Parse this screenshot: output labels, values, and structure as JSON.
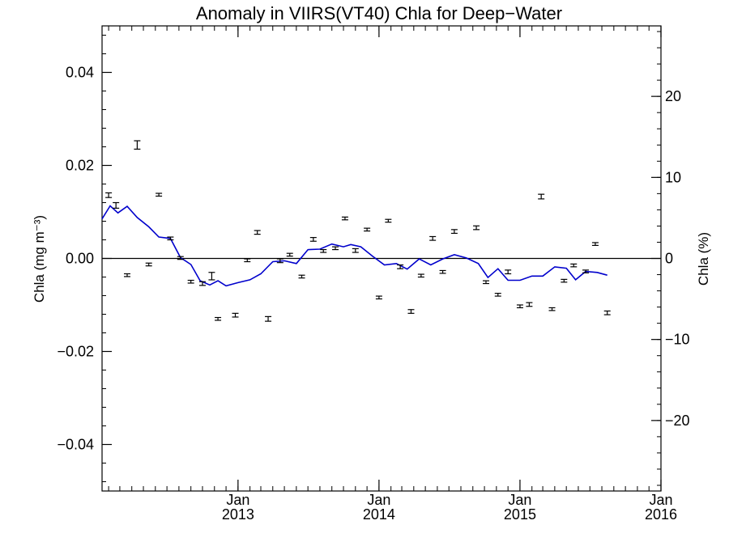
{
  "chart_data": {
    "type": "scatter",
    "title": "Anomaly in VIIRS(VT40) Chla for Deep−Water",
    "ylabel_left": "Chla (mg m⁻³)",
    "ylabel_right": "Chla (%)",
    "xlabel": "",
    "ylim": [
      -0.05,
      0.05
    ],
    "ylim_right_percent": [
      -28.7,
      28.7
    ],
    "xlim": [
      "2012-01-15",
      "2016-01-01"
    ],
    "grid": false,
    "legend": "none",
    "x_ticks": [
      {
        "date": "2013-01-01",
        "month": "Jan",
        "year": "2013"
      },
      {
        "date": "2014-01-01",
        "month": "Jan",
        "year": "2014"
      },
      {
        "date": "2015-01-01",
        "month": "Jan",
        "year": "2015"
      },
      {
        "date": "2016-01-01",
        "month": "Jan",
        "year": "2016"
      }
    ],
    "y_ticks_left": [
      {
        "value": 0.04,
        "label": "0.04"
      },
      {
        "value": 0.02,
        "label": "0.02"
      },
      {
        "value": 0.0,
        "label": "0.00"
      },
      {
        "value": -0.02,
        "label": "−0.02"
      },
      {
        "value": -0.04,
        "label": "−0.04"
      }
    ],
    "y_ticks_right": [
      {
        "value": 20,
        "label": "20"
      },
      {
        "value": 10,
        "label": "10"
      },
      {
        "value": 0,
        "label": "0"
      },
      {
        "value": -10,
        "label": "−10"
      },
      {
        "value": -20,
        "label": "−20"
      }
    ],
    "zero_line": 0.0,
    "series": [
      {
        "kind": "errorbar",
        "color": "#000000",
        "points": [
          {
            "x": "2012-02-01",
            "y": 0.0136,
            "err": 0.0005
          },
          {
            "x": "2012-02-20",
            "y": 0.0114,
            "err": 0.0006
          },
          {
            "x": "2012-03-20",
            "y": -0.0036,
            "err": 0.0003
          },
          {
            "x": "2012-04-15",
            "y": 0.0244,
            "err": 0.0009
          },
          {
            "x": "2012-05-15",
            "y": -0.0013,
            "err": 0.0003
          },
          {
            "x": "2012-06-10",
            "y": 0.0137,
            "err": 0.0003
          },
          {
            "x": "2012-07-10",
            "y": 0.0043,
            "err": 0.0003
          },
          {
            "x": "2012-08-05",
            "y": 0.0001,
            "err": 0.0003
          },
          {
            "x": "2012-09-01",
            "y": -0.005,
            "err": 0.0003
          },
          {
            "x": "2012-10-01",
            "y": -0.0054,
            "err": 0.0004
          },
          {
            "x": "2012-10-25",
            "y": -0.0038,
            "err": 0.0008
          },
          {
            "x": "2012-11-10",
            "y": -0.013,
            "err": 0.0003
          },
          {
            "x": "2012-12-25",
            "y": -0.0122,
            "err": 0.0004
          },
          {
            "x": "2013-01-25",
            "y": -0.0004,
            "err": 0.0003
          },
          {
            "x": "2013-02-20",
            "y": 0.0056,
            "err": 0.0004
          },
          {
            "x": "2013-03-20",
            "y": -0.013,
            "err": 0.0005
          },
          {
            "x": "2013-04-20",
            "y": -0.0005,
            "err": 0.0004
          },
          {
            "x": "2013-05-15",
            "y": 0.0008,
            "err": 0.0003
          },
          {
            "x": "2013-06-15",
            "y": -0.0039,
            "err": 0.0003
          },
          {
            "x": "2013-07-15",
            "y": 0.0041,
            "err": 0.0004
          },
          {
            "x": "2013-08-10",
            "y": 0.0016,
            "err": 0.0003
          },
          {
            "x": "2013-09-10",
            "y": 0.0022,
            "err": 0.0003
          },
          {
            "x": "2013-10-05",
            "y": 0.0086,
            "err": 0.0003
          },
          {
            "x": "2013-11-01",
            "y": 0.0017,
            "err": 0.0004
          },
          {
            "x": "2013-12-01",
            "y": 0.0062,
            "err": 0.0003
          },
          {
            "x": "2014-01-01",
            "y": -0.0084,
            "err": 0.0003
          },
          {
            "x": "2014-01-25",
            "y": 0.0081,
            "err": 0.0003
          },
          {
            "x": "2014-02-25",
            "y": -0.0018,
            "err": 0.0004
          },
          {
            "x": "2014-03-25",
            "y": -0.0114,
            "err": 0.0004
          },
          {
            "x": "2014-04-20",
            "y": -0.0037,
            "err": 0.0003
          },
          {
            "x": "2014-05-20",
            "y": 0.0043,
            "err": 0.0004
          },
          {
            "x": "2014-06-15",
            "y": -0.0029,
            "err": 0.0003
          },
          {
            "x": "2014-07-15",
            "y": 0.0058,
            "err": 0.0004
          },
          {
            "x": "2014-09-10",
            "y": 0.0066,
            "err": 0.0004
          },
          {
            "x": "2014-10-05",
            "y": -0.0051,
            "err": 0.0003
          },
          {
            "x": "2014-11-05",
            "y": -0.0078,
            "err": 0.0003
          },
          {
            "x": "2014-12-01",
            "y": -0.0029,
            "err": 0.0004
          },
          {
            "x": "2015-01-01",
            "y": -0.0103,
            "err": 0.0003
          },
          {
            "x": "2015-01-25",
            "y": -0.0099,
            "err": 0.0004
          },
          {
            "x": "2015-02-25",
            "y": 0.0133,
            "err": 0.0005
          },
          {
            "x": "2015-03-25",
            "y": -0.0109,
            "err": 0.0003
          },
          {
            "x": "2015-04-25",
            "y": -0.0048,
            "err": 0.0003
          },
          {
            "x": "2015-05-20",
            "y": -0.0015,
            "err": 0.0003
          },
          {
            "x": "2015-06-20",
            "y": -0.0028,
            "err": 0.0003
          },
          {
            "x": "2015-07-15",
            "y": 0.0031,
            "err": 0.0003
          },
          {
            "x": "2015-08-15",
            "y": -0.0117,
            "err": 0.0004
          }
        ]
      },
      {
        "kind": "line",
        "color": "#0000cc",
        "points": [
          {
            "x": "2012-01-15",
            "y": 0.0085
          },
          {
            "x": "2012-02-05",
            "y": 0.0113
          },
          {
            "x": "2012-02-25",
            "y": 0.0098
          },
          {
            "x": "2012-03-20",
            "y": 0.0112
          },
          {
            "x": "2012-04-15",
            "y": 0.0088
          },
          {
            "x": "2012-05-15",
            "y": 0.0068
          },
          {
            "x": "2012-06-10",
            "y": 0.0046
          },
          {
            "x": "2012-07-10",
            "y": 0.0043
          },
          {
            "x": "2012-08-05",
            "y": 0.0002
          },
          {
            "x": "2012-09-01",
            "y": -0.0013
          },
          {
            "x": "2012-09-25",
            "y": -0.0048
          },
          {
            "x": "2012-10-20",
            "y": -0.0057
          },
          {
            "x": "2012-11-10",
            "y": -0.0048
          },
          {
            "x": "2012-12-01",
            "y": -0.0059
          },
          {
            "x": "2013-01-01",
            "y": -0.0052
          },
          {
            "x": "2013-02-01",
            "y": -0.0046
          },
          {
            "x": "2013-03-01",
            "y": -0.0033
          },
          {
            "x": "2013-04-01",
            "y": -0.0007
          },
          {
            "x": "2013-05-01",
            "y": -0.0005
          },
          {
            "x": "2013-06-01",
            "y": -0.0011
          },
          {
            "x": "2013-07-01",
            "y": 0.0019
          },
          {
            "x": "2013-08-01",
            "y": 0.002
          },
          {
            "x": "2013-09-01",
            "y": 0.0031
          },
          {
            "x": "2013-10-01",
            "y": 0.0025
          },
          {
            "x": "2013-10-20",
            "y": 0.003
          },
          {
            "x": "2013-11-15",
            "y": 0.0025
          },
          {
            "x": "2013-12-15",
            "y": 0.0005
          },
          {
            "x": "2014-01-15",
            "y": -0.0014
          },
          {
            "x": "2014-02-15",
            "y": -0.0011
          },
          {
            "x": "2014-03-15",
            "y": -0.0023
          },
          {
            "x": "2014-04-15",
            "y": -0.0001
          },
          {
            "x": "2014-05-15",
            "y": -0.0014
          },
          {
            "x": "2014-06-15",
            "y": -0.0001
          },
          {
            "x": "2014-07-15",
            "y": 0.0008
          },
          {
            "x": "2014-08-15",
            "y": 0.0001
          },
          {
            "x": "2014-09-15",
            "y": -0.0011
          },
          {
            "x": "2014-10-10",
            "y": -0.0041
          },
          {
            "x": "2014-11-05",
            "y": -0.0022
          },
          {
            "x": "2014-12-01",
            "y": -0.0047
          },
          {
            "x": "2015-01-01",
            "y": -0.0047
          },
          {
            "x": "2015-02-01",
            "y": -0.0038
          },
          {
            "x": "2015-03-01",
            "y": -0.0038
          },
          {
            "x": "2015-04-01",
            "y": -0.0018
          },
          {
            "x": "2015-05-01",
            "y": -0.0021
          },
          {
            "x": "2015-05-25",
            "y": -0.0046
          },
          {
            "x": "2015-06-20",
            "y": -0.0028
          },
          {
            "x": "2015-07-20",
            "y": -0.003
          },
          {
            "x": "2015-08-15",
            "y": -0.0036
          }
        ]
      }
    ]
  }
}
